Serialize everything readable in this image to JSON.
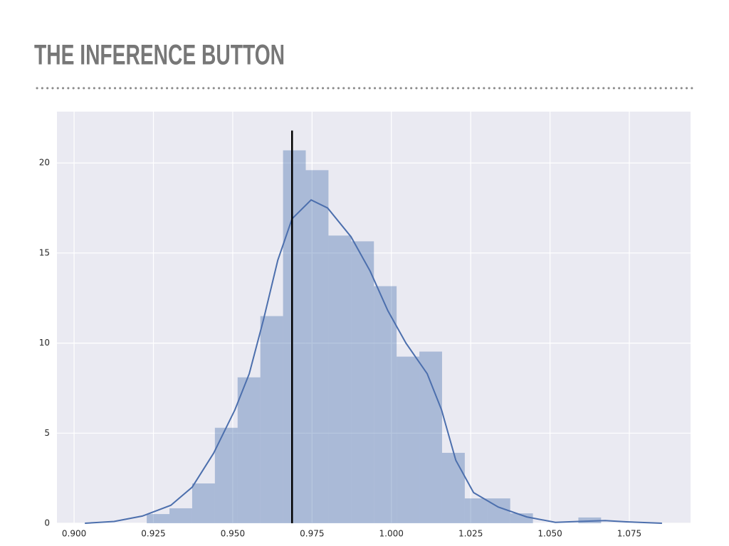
{
  "chart_data": {
    "type": "histogram",
    "title": "THE INFERENCE BUTTON",
    "bins": [
      0.9229,
      0.93006,
      0.93722,
      0.94438,
      0.95154,
      0.9587,
      0.96586,
      0.97302,
      0.98018,
      0.98734,
      0.9945,
      1.00166,
      1.00882,
      1.01598,
      1.02314,
      1.0303,
      1.03746,
      1.04462,
      1.05178,
      1.05894,
      1.0661
    ],
    "values": [
      0.51,
      0.83,
      2.21,
      5.3,
      8.1,
      11.5,
      20.7,
      19.6,
      15.97,
      15.65,
      13.16,
      9.25,
      9.53,
      3.91,
      1.38,
      1.38,
      0.55,
      0,
      0,
      0.32
    ],
    "color": "#4c72b0",
    "alpha": 0.4,
    "kde": {
      "color": "#4c6fad",
      "x": [
        0.9034,
        0.9126,
        0.9215,
        0.9305,
        0.9372,
        0.944,
        0.9507,
        0.9552,
        0.9597,
        0.9642,
        0.9687,
        0.9747,
        0.9799,
        0.9873,
        0.9933,
        0.9989,
        1.0046,
        1.0113,
        1.0158,
        1.0203,
        1.0259,
        1.0337,
        1.0427,
        1.0517,
        1.0589,
        1.0674,
        1.0741,
        1.0853
      ],
      "y": [
        0,
        0.1,
        0.4,
        1.0,
        2.0,
        3.9,
        6.3,
        8.3,
        11.3,
        14.6,
        16.9,
        17.95,
        17.5,
        15.9,
        14.0,
        11.8,
        10.0,
        8.3,
        6.3,
        3.5,
        1.7,
        0.9,
        0.35,
        0.05,
        0.1,
        0.15,
        0.08,
        0
      ]
    },
    "vline": {
      "x": 0.9687,
      "ymax": 21.8,
      "color": "#000000"
    },
    "xlim": [
      0.8946,
      1.0943
    ],
    "ylim": [
      0,
      22.85
    ],
    "xticks": [
      {
        "value": 0.9,
        "label": "0.900"
      },
      {
        "value": 0.925,
        "label": "0.925"
      },
      {
        "value": 0.95,
        "label": "0.950"
      },
      {
        "value": 0.975,
        "label": "0.975"
      },
      {
        "value": 1.0,
        "label": "1.000"
      },
      {
        "value": 1.025,
        "label": "1.025"
      },
      {
        "value": 1.05,
        "label": "1.050"
      },
      {
        "value": 1.075,
        "label": "1.075"
      }
    ],
    "yticks": [
      0,
      5,
      10,
      15,
      20
    ],
    "grid": true,
    "background": "#eaeaf2"
  }
}
